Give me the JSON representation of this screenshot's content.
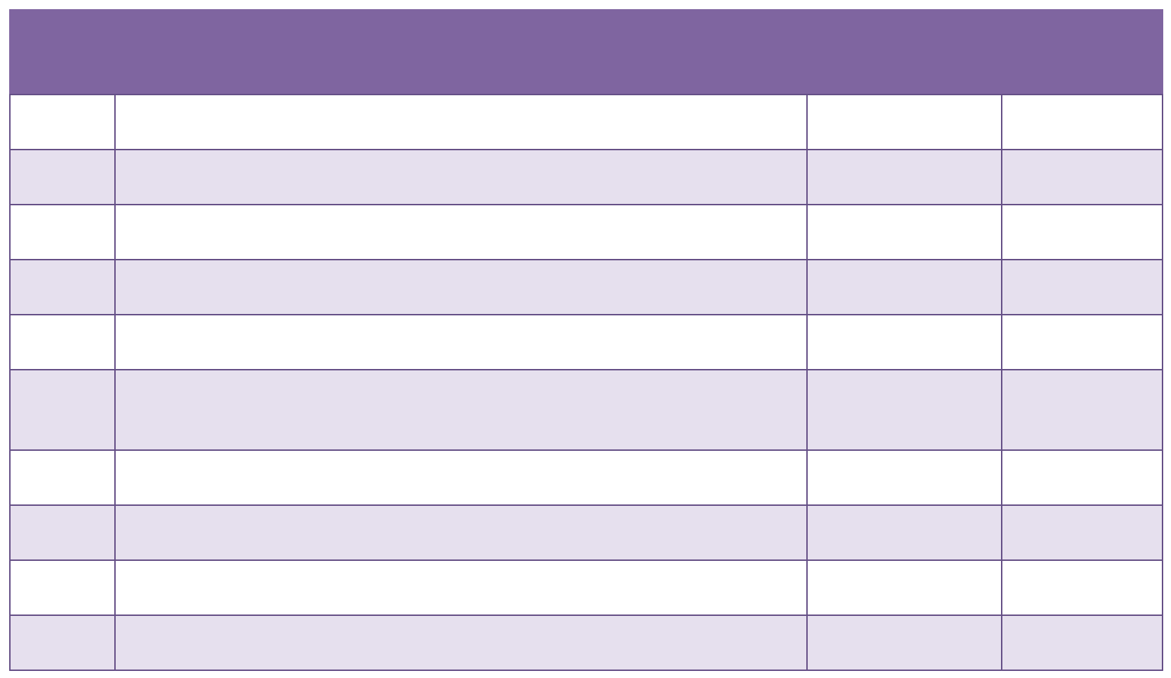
{
  "colors": {
    "header_background": "#7f65a0",
    "border": "#654f86",
    "row_odd": "#ffffff",
    "row_even": "#e6e0ee"
  },
  "table": {
    "header": {
      "title": ""
    },
    "columns": 4,
    "rows": [
      [
        "",
        "",
        "",
        ""
      ],
      [
        "",
        "",
        "",
        ""
      ],
      [
        "",
        "",
        "",
        ""
      ],
      [
        "",
        "",
        "",
        ""
      ],
      [
        "",
        "",
        "",
        ""
      ],
      [
        "",
        "",
        "",
        ""
      ],
      [
        "",
        "",
        "",
        ""
      ],
      [
        "",
        "",
        "",
        ""
      ],
      [
        "",
        "",
        "",
        ""
      ],
      [
        "",
        "",
        "",
        ""
      ]
    ]
  }
}
